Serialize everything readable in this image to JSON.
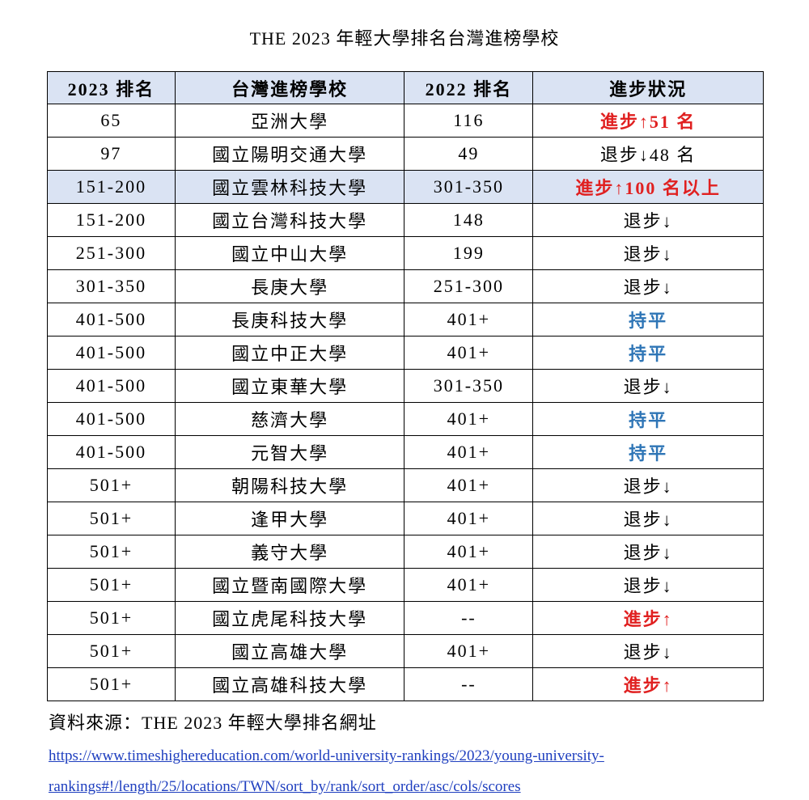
{
  "title": "THE 2023  年輕大學排名台灣進榜學校",
  "table": {
    "header": [
      "2023 排名",
      "台灣進榜學校",
      "2022 排名",
      "進步狀況"
    ],
    "header_color": "#dae3f3",
    "rows": [
      {
        "cells": [
          "65",
          "亞洲大學",
          "116",
          "進步↑51 名"
        ],
        "status_color": "#e02020"
      },
      {
        "cells": [
          "97",
          "國立陽明交通大學",
          "49",
          "退步↓48 名"
        ],
        "status_color": "#000000"
      },
      {
        "cells": [
          "151-200",
          "國立雲林科技大學",
          "301-350",
          "進步↑100 名以上"
        ],
        "status_color": "#e02020",
        "background": "#dae3f3"
      },
      {
        "cells": [
          "151-200",
          "國立台灣科技大學",
          "148",
          "退步↓"
        ],
        "status_color": "#000000"
      },
      {
        "cells": [
          "251-300",
          "國立中山大學",
          "199",
          "退步↓"
        ],
        "status_color": "#000000"
      },
      {
        "cells": [
          "301-350",
          "長庚大學",
          "251-300",
          "退步↓"
        ],
        "status_color": "#000000"
      },
      {
        "cells": [
          "401-500",
          "長庚科技大學",
          "401+",
          "持平"
        ],
        "status_color": "#2e75b6"
      },
      {
        "cells": [
          "401-500",
          "國立中正大學",
          "401+",
          "持平"
        ],
        "status_color": "#2e75b6"
      },
      {
        "cells": [
          "401-500",
          "國立東華大學",
          "301-350",
          "退步↓"
        ],
        "status_color": "#000000"
      },
      {
        "cells": [
          "401-500",
          "慈濟大學",
          "401+",
          "持平"
        ],
        "status_color": "#2e75b6"
      },
      {
        "cells": [
          "401-500",
          "元智大學",
          "401+",
          "持平"
        ],
        "status_color": "#2e75b6"
      },
      {
        "cells": [
          "501+",
          "朝陽科技大學",
          "401+",
          "退步↓"
        ],
        "status_color": "#000000"
      },
      {
        "cells": [
          "501+",
          "逢甲大學",
          "401+",
          "退步↓"
        ],
        "status_color": "#000000"
      },
      {
        "cells": [
          "501+",
          "義守大學",
          "401+",
          "退步↓"
        ],
        "status_color": "#000000"
      },
      {
        "cells": [
          "501+",
          "國立暨南國際大學",
          "401+",
          "退步↓"
        ],
        "status_color": "#000000"
      },
      {
        "cells": [
          "501+",
          "國立虎尾科技大學",
          "--",
          "進步↑"
        ],
        "status_color": "#e02020"
      },
      {
        "cells": [
          "501+",
          "國立高雄大學",
          "401+",
          "退步↓"
        ],
        "status_color": "#000000"
      },
      {
        "cells": [
          "501+",
          "國立高雄科技大學",
          "--",
          "進步↑"
        ],
        "status_color": "#e02020"
      }
    ]
  },
  "source": {
    "label": "資料來源：THE 2023 年輕大學排名網址",
    "link_lines": [
      "https://www.timeshighereducation.com/world-university-rankings/2023/young-university-",
      "rankings#!/length/25/locations/TWN/sort_by/rank/sort_order/asc/cols/scores"
    ]
  }
}
